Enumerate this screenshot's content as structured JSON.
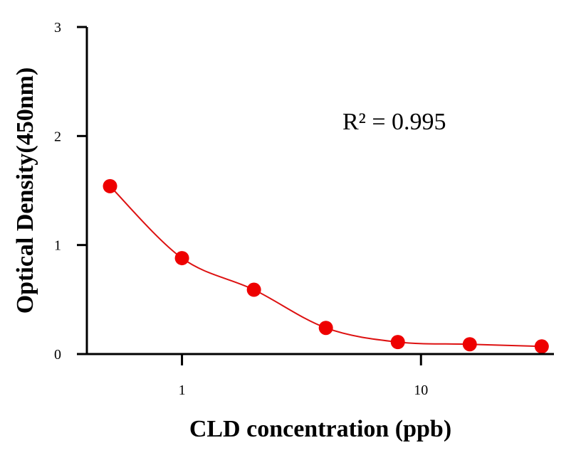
{
  "chart_data": {
    "type": "scatter",
    "title": "",
    "xlabel": "CLD concentration (ppb)",
    "ylabel": "Optical Density(450nm)",
    "x_scale": "log",
    "xlim": [
      0.4,
      36
    ],
    "ylim": [
      0,
      3
    ],
    "x_ticks": [
      1,
      10
    ],
    "x_tick_labels": [
      "1",
      "10"
    ],
    "y_ticks": [
      0,
      1,
      2,
      3
    ],
    "y_tick_labels": [
      "0",
      "1",
      "2",
      "3"
    ],
    "grid": false,
    "legend": "none",
    "annotation": "R² = 0.995",
    "series": [
      {
        "x": [
          0.5,
          1,
          2,
          4,
          8,
          16,
          32
        ],
        "y": [
          1.54,
          0.88,
          0.59,
          0.24,
          0.11,
          0.09,
          0.07
        ],
        "marker_color": "#ee0000",
        "fit_color": "#dd1111"
      }
    ]
  }
}
